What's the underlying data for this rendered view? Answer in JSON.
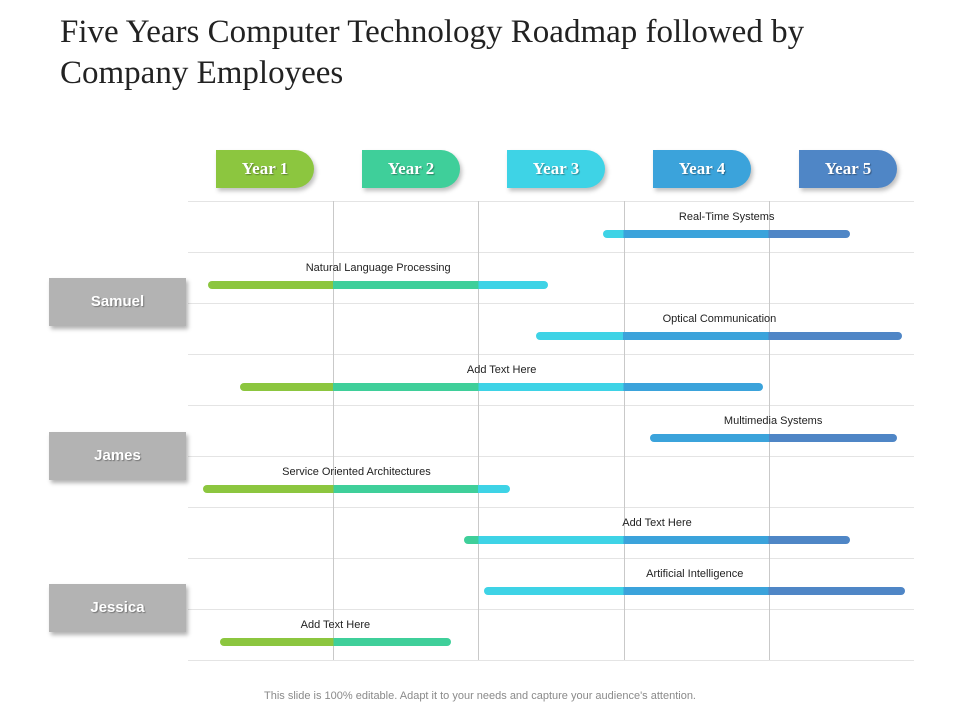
{
  "title": "Five Years Computer Technology Roadmap followed by Company Employees",
  "years": [
    {
      "label": "Year 1",
      "color": "#8cc63f"
    },
    {
      "label": "Year 2",
      "color": "#3fcf9a"
    },
    {
      "label": "Year 3",
      "color": "#3ed3e6"
    },
    {
      "label": "Year 4",
      "color": "#3ba3db"
    },
    {
      "label": "Year 5",
      "color": "#4f86c6"
    }
  ],
  "people": [
    "Samuel",
    "James",
    "Jessica"
  ],
  "tasks": [
    {
      "label": "Real-Time Systems",
      "start": 2.86,
      "end": 4.56
    },
    {
      "label": "Natural Language Processing",
      "start": 0.14,
      "end": 2.48
    },
    {
      "label": "Optical Communication",
      "start": 2.4,
      "end": 4.92
    },
    {
      "label": "Add Text Here",
      "start": 0.36,
      "end": 3.96
    },
    {
      "label": "Multimedia Systems",
      "start": 3.18,
      "end": 4.88
    },
    {
      "label": "Service Oriented Architectures",
      "start": 0.1,
      "end": 2.22
    },
    {
      "label": "Add Text Here",
      "start": 1.9,
      "end": 4.56
    },
    {
      "label": "Artificial Intelligence",
      "start": 2.04,
      "end": 4.94
    },
    {
      "label": "Add Text Here",
      "start": 0.22,
      "end": 1.81
    }
  ],
  "footer": "This slide is 100% editable. Adapt it to your needs and capture your audience's attention."
}
